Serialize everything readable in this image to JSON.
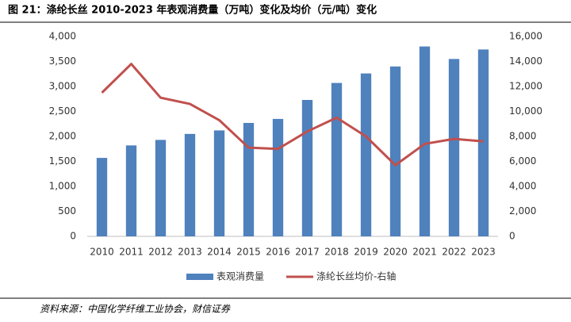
{
  "title": "图 21：涤纶长丝 2010-2023 年表观消费量（万吨）变化及均价（元/吨）变化",
  "source": "资料来源：中国化学纤维工业协会，财信证券",
  "chart_data": {
    "type": "bar",
    "categories": [
      "2010",
      "2011",
      "2012",
      "2013",
      "2014",
      "2015",
      "2016",
      "2017",
      "2018",
      "2019",
      "2020",
      "2021",
      "2022",
      "2023"
    ],
    "series": [
      {
        "name": "表观消费量",
        "type": "bar",
        "color": "#4f81bd",
        "values": [
          1570,
          1820,
          1930,
          2050,
          2120,
          2270,
          2350,
          2730,
          3070,
          3260,
          3400,
          3800,
          3550,
          3740
        ]
      },
      {
        "name": "涤纶长丝均价-右轴",
        "type": "line",
        "axis": "y2",
        "color": "#c0504d",
        "values": [
          11500,
          13800,
          11100,
          10600,
          9300,
          7100,
          7000,
          8400,
          9500,
          8000,
          5700,
          7400,
          7800,
          7600
        ]
      }
    ],
    "ylim": [
      0,
      4000
    ],
    "yticks": [
      0,
      {
        "value": 500,
        "label": "500"
      },
      {
        "value": 1000,
        "label": "1,000"
      },
      {
        "value": 1500,
        "label": "1,500"
      },
      {
        "value": 2000,
        "label": "2,000"
      },
      {
        "value": 2500,
        "label": "2,500"
      },
      {
        "value": 3000,
        "label": "3,000"
      },
      {
        "value": 3500,
        "label": "3,500"
      },
      {
        "value": 4000,
        "label": "4,000"
      }
    ],
    "y2lim": [
      0,
      16000
    ],
    "y2ticks": [
      0,
      {
        "value": 2000,
        "label": "2,000"
      },
      {
        "value": 4000,
        "label": "4,000"
      },
      {
        "value": 6000,
        "label": "6,000"
      },
      {
        "value": 8000,
        "label": "8,000"
      },
      {
        "value": 10000,
        "label": "10,000"
      },
      {
        "value": 12000,
        "label": "12,000"
      },
      {
        "value": 14000,
        "label": "14,000"
      },
      {
        "value": 16000,
        "label": "16,000"
      }
    ],
    "legend": "bottom"
  }
}
